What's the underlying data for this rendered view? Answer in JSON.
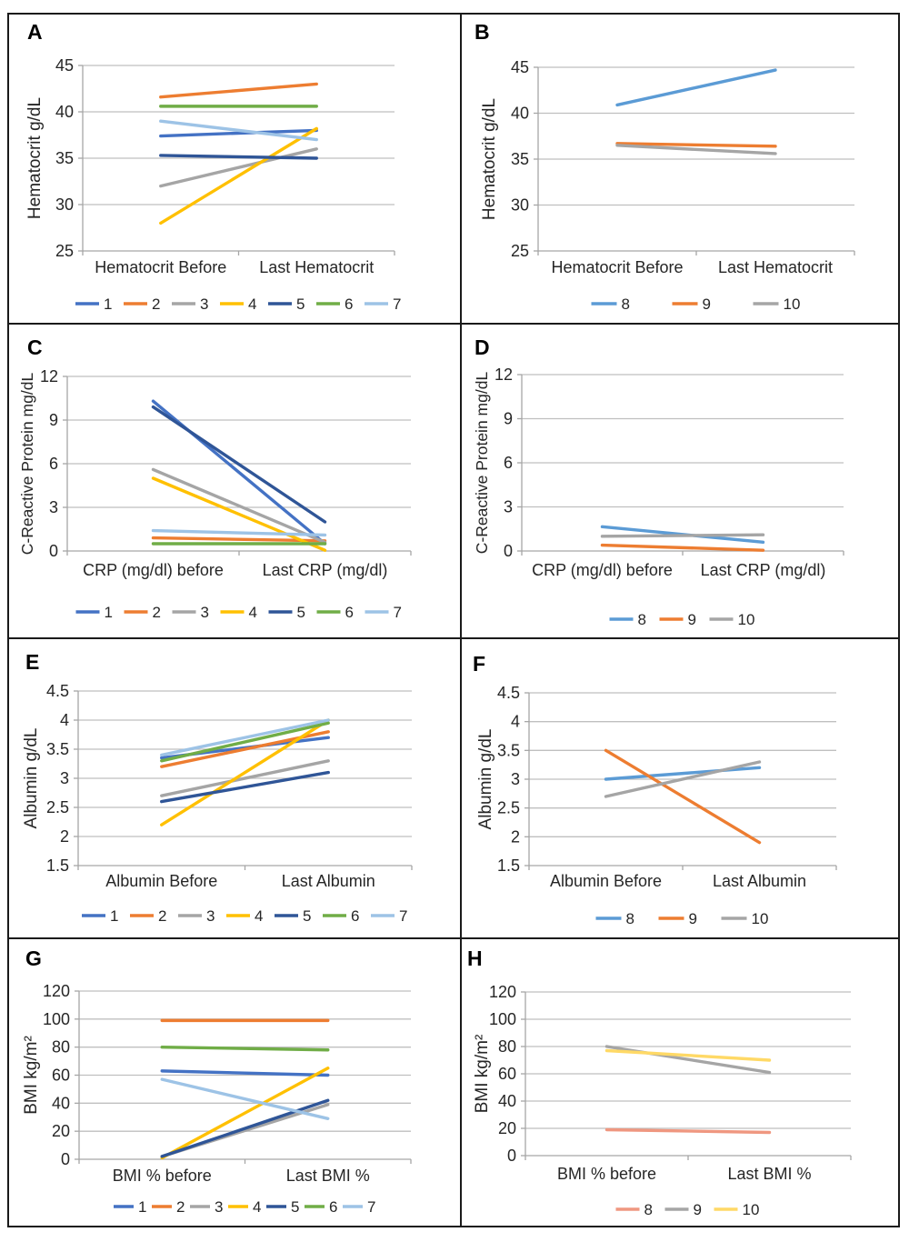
{
  "page": {
    "background": "#FFFFFF",
    "border_color": "#1a1a1a"
  },
  "styles": {
    "grid_color": "#BFBFBF",
    "axis_color": "#A6A6A6",
    "text_color": "#262626"
  },
  "chart_data": [
    {
      "id": "A",
      "type": "line",
      "ylabel": "Hematocrit g/dL",
      "ylim": [
        25,
        45
      ],
      "yticks": [
        "25",
        "30",
        "35",
        "40",
        "45"
      ],
      "categories": [
        "Hematocrit Before",
        "Last Hematocrit"
      ],
      "grid": true,
      "legend_position": "bottom",
      "series": [
        {
          "name": "1",
          "color": "#4472C4",
          "values": [
            37.4,
            38.0
          ]
        },
        {
          "name": "2",
          "color": "#ED7D31",
          "values": [
            41.6,
            43.0
          ]
        },
        {
          "name": "3",
          "color": "#A5A5A5",
          "values": [
            32.0,
            36.0
          ]
        },
        {
          "name": "4",
          "color": "#FFC000",
          "values": [
            28.0,
            38.2
          ]
        },
        {
          "name": "5",
          "color": "#2F5597",
          "values": [
            35.3,
            35.0
          ]
        },
        {
          "name": "6",
          "color": "#70AD47",
          "values": [
            40.6,
            40.6
          ]
        },
        {
          "name": "7",
          "color": "#9DC3E6",
          "values": [
            39.0,
            37.0
          ]
        }
      ]
    },
    {
      "id": "B",
      "type": "line",
      "ylabel": "Hematocrit g/dL",
      "ylim": [
        25,
        45
      ],
      "yticks": [
        "25",
        "30",
        "35",
        "40",
        "45"
      ],
      "categories": [
        "Hematocrit Before",
        "Last Hematocrit"
      ],
      "grid": true,
      "legend_position": "bottom",
      "series": [
        {
          "name": "8",
          "color": "#5B9BD5",
          "values": [
            40.9,
            44.7
          ]
        },
        {
          "name": "9",
          "color": "#ED7D31",
          "values": [
            36.7,
            36.4
          ]
        },
        {
          "name": "10",
          "color": "#A5A5A5",
          "values": [
            36.5,
            35.6
          ]
        }
      ]
    },
    {
      "id": "C",
      "type": "line",
      "ylabel": "C-Reactive Protein mg/dL",
      "ylim": [
        0,
        12
      ],
      "yticks": [
        "0",
        "3",
        "6",
        "9",
        "12"
      ],
      "categories": [
        "CRP (mg/dl) before",
        "Last CRP (mg/dl)"
      ],
      "grid": true,
      "legend_position": "bottom",
      "series": [
        {
          "name": "1",
          "color": "#4472C4",
          "values": [
            10.3,
            0.5
          ]
        },
        {
          "name": "2",
          "color": "#ED7D31",
          "values": [
            0.9,
            0.7
          ]
        },
        {
          "name": "3",
          "color": "#A5A5A5",
          "values": [
            5.6,
            0.6
          ]
        },
        {
          "name": "4",
          "color": "#FFC000",
          "values": [
            5.0,
            0.05
          ]
        },
        {
          "name": "5",
          "color": "#2F5597",
          "values": [
            9.9,
            2.0
          ]
        },
        {
          "name": "6",
          "color": "#70AD47",
          "values": [
            0.5,
            0.5
          ]
        },
        {
          "name": "7",
          "color": "#9DC3E6",
          "values": [
            1.4,
            1.1
          ]
        }
      ]
    },
    {
      "id": "D",
      "type": "line",
      "ylabel": "C-Reactive Protein mg/dL",
      "ylim": [
        0,
        12
      ],
      "yticks": [
        "0",
        "3",
        "6",
        "9",
        "12"
      ],
      "categories": [
        "CRP (mg/dl) before",
        "Last CRP (mg/dl)"
      ],
      "grid": true,
      "legend_position": "bottom",
      "series": [
        {
          "name": "8",
          "color": "#5B9BD5",
          "values": [
            1.65,
            0.6
          ]
        },
        {
          "name": "9",
          "color": "#ED7D31",
          "values": [
            0.4,
            0.05
          ]
        },
        {
          "name": "10",
          "color": "#A5A5A5",
          "values": [
            1.0,
            1.1
          ]
        }
      ]
    },
    {
      "id": "E",
      "type": "line",
      "ylabel": "Albumin g/dL",
      "ylim": [
        1.5,
        4.5
      ],
      "yticks": [
        "1.5",
        "2",
        "2.5",
        "3",
        "3.5",
        "4",
        "4.5"
      ],
      "categories": [
        "Albumin Before",
        "Last Albumin"
      ],
      "grid": true,
      "legend_position": "bottom",
      "series": [
        {
          "name": "1",
          "color": "#4472C4",
          "values": [
            3.35,
            3.7
          ]
        },
        {
          "name": "2",
          "color": "#ED7D31",
          "values": [
            3.2,
            3.8
          ]
        },
        {
          "name": "3",
          "color": "#A5A5A5",
          "values": [
            2.7,
            3.3
          ]
        },
        {
          "name": "4",
          "color": "#FFC000",
          "values": [
            2.2,
            4.0
          ]
        },
        {
          "name": "5",
          "color": "#2F5597",
          "values": [
            2.6,
            3.1
          ]
        },
        {
          "name": "6",
          "color": "#70AD47",
          "values": [
            3.3,
            3.95
          ]
        },
        {
          "name": "7",
          "color": "#9DC3E6",
          "values": [
            3.4,
            4.0
          ]
        }
      ]
    },
    {
      "id": "F",
      "type": "line",
      "ylabel": "Albumin g/dL",
      "ylim": [
        1.5,
        4.5
      ],
      "yticks": [
        "1.5",
        "2",
        "2.5",
        "3",
        "3.5",
        "4",
        "4.5"
      ],
      "categories": [
        "Albumin Before",
        "Last Albumin"
      ],
      "grid": true,
      "legend_position": "bottom",
      "series": [
        {
          "name": "8",
          "color": "#5B9BD5",
          "values": [
            3.0,
            3.2
          ]
        },
        {
          "name": "9",
          "color": "#ED7D31",
          "values": [
            3.5,
            1.9
          ]
        },
        {
          "name": "10",
          "color": "#A5A5A5",
          "values": [
            2.7,
            3.3
          ]
        }
      ]
    },
    {
      "id": "G",
      "type": "line",
      "ylabel": "BMI kg/m²",
      "ylim": [
        0,
        120
      ],
      "yticks": [
        "0",
        "20",
        "40",
        "60",
        "80",
        "100",
        "120"
      ],
      "categories": [
        "BMI % before",
        "Last BMI %"
      ],
      "grid": true,
      "legend_position": "bottom",
      "series": [
        {
          "name": "1",
          "color": "#4472C4",
          "values": [
            63,
            60
          ]
        },
        {
          "name": "2",
          "color": "#ED7D31",
          "values": [
            99,
            99
          ]
        },
        {
          "name": "3",
          "color": "#A5A5A5",
          "values": [
            2,
            39
          ]
        },
        {
          "name": "4",
          "color": "#FFC000",
          "values": [
            1,
            65
          ]
        },
        {
          "name": "5",
          "color": "#2F5597",
          "values": [
            2,
            42
          ]
        },
        {
          "name": "6",
          "color": "#70AD47",
          "values": [
            80,
            78
          ]
        },
        {
          "name": "7",
          "color": "#9DC3E6",
          "values": [
            57,
            29
          ]
        }
      ]
    },
    {
      "id": "H",
      "type": "line",
      "ylabel": "BMI kg/m²",
      "ylim": [
        0,
        120
      ],
      "yticks": [
        "0",
        "20",
        "40",
        "60",
        "80",
        "100",
        "120"
      ],
      "categories": [
        "BMI % before",
        "Last BMI %"
      ],
      "grid": true,
      "legend_position": "bottom",
      "series": [
        {
          "name": "8",
          "color": "#EF9780",
          "values": [
            19,
            17
          ]
        },
        {
          "name": "9",
          "color": "#A5A5A5",
          "values": [
            80,
            61
          ]
        },
        {
          "name": "10",
          "color": "#FFD966",
          "values": [
            77,
            70
          ]
        }
      ]
    }
  ]
}
